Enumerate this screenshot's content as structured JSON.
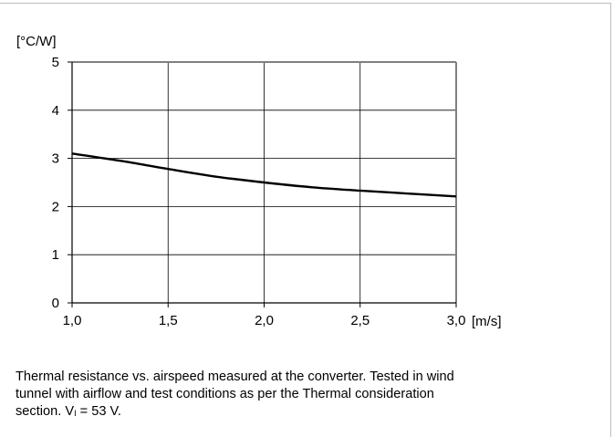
{
  "chart_data": {
    "type": "line",
    "title": "",
    "xlabel": "[m/s]",
    "ylabel": "[°C/W]",
    "xlim": [
      1.0,
      3.0
    ],
    "ylim": [
      0,
      5
    ],
    "x_ticks": [
      "1,0",
      "1,5",
      "2,0",
      "2,5",
      "3,0"
    ],
    "y_ticks": [
      "0",
      "1",
      "2",
      "3",
      "4",
      "5"
    ],
    "grid": true,
    "series": [
      {
        "x": [
          1.0,
          1.25,
          1.5,
          1.75,
          2.0,
          2.25,
          2.5,
          2.75,
          3.0
        ],
        "y": [
          3.1,
          2.95,
          2.78,
          2.62,
          2.5,
          2.4,
          2.33,
          2.27,
          2.21
        ],
        "color": "#000000"
      }
    ]
  },
  "caption": {
    "line1": "Thermal resistance vs. airspeed measured at the converter. Tested in wind",
    "line2": "tunnel with airflow and test conditions as per the Thermal consideration",
    "line3_prefix": "section. V",
    "line3_sub": "I",
    "line3_suffix": " = 53 V."
  }
}
